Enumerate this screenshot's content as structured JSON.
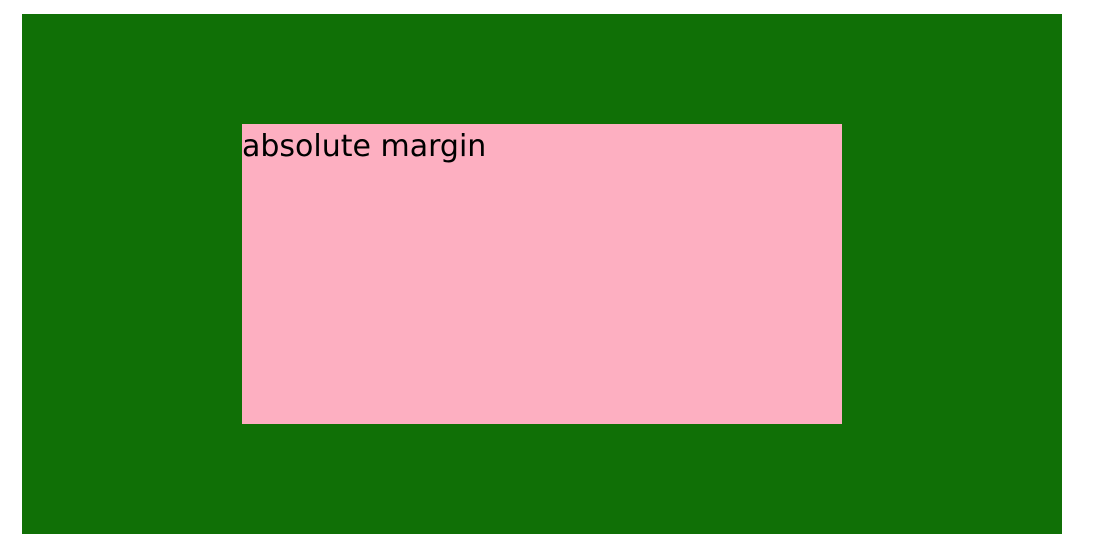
{
  "colors": {
    "page_background": "#ffffff",
    "outer_box": "#107006",
    "inner_box": "#fdafc1",
    "text": "#000000"
  },
  "inner_box": {
    "label": "absolute margin"
  }
}
